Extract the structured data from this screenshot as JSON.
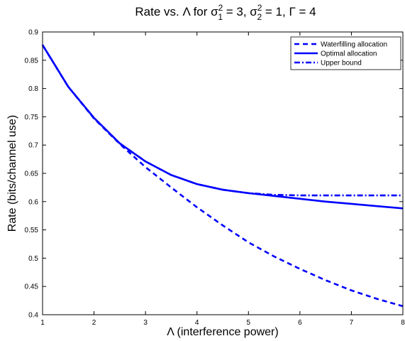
{
  "chart_data": {
    "type": "line",
    "title_parts": {
      "prefix": "Rate vs. Λ for σ",
      "s1_sup": "2",
      "s1_sub": "1",
      "eq1": " = 3, σ",
      "s2_sup": "2",
      "s2_sub": "2",
      "eq2": " = 1, Γ = 4"
    },
    "xlabel": "Λ (interference power)",
    "ylabel": "Rate (bits/channel use)",
    "xlim": [
      1,
      8
    ],
    "ylim": [
      0.4,
      0.9
    ],
    "xticks": [
      "1",
      "2",
      "3",
      "4",
      "5",
      "6",
      "7",
      "8"
    ],
    "yticks": [
      "0.4",
      "0.45",
      "0.5",
      "0.55",
      "0.6",
      "0.65",
      "0.7",
      "0.75",
      "0.8",
      "0.85",
      "0.9"
    ],
    "grid": false,
    "legend_position": "top-right",
    "x": [
      1.0,
      1.5,
      2.0,
      2.5,
      3.0,
      3.5,
      4.0,
      4.5,
      5.0,
      5.5,
      6.0,
      6.5,
      7.0,
      7.5,
      8.0
    ],
    "series": [
      {
        "name": "Waterfilling allocation",
        "style": "dashed",
        "color": "#0000ff",
        "values": [
          0.877,
          0.803,
          0.747,
          0.702,
          0.661,
          0.625,
          0.59,
          0.558,
          0.528,
          0.503,
          0.481,
          0.461,
          0.443,
          0.428,
          0.415
        ]
      },
      {
        "name": "Optimal allocation",
        "style": "solid",
        "color": "#0000ff",
        "values": [
          0.877,
          0.803,
          0.748,
          0.703,
          0.671,
          0.647,
          0.631,
          0.621,
          0.615,
          0.61,
          0.605,
          0.6,
          0.596,
          0.592,
          0.588
        ]
      },
      {
        "name": "Upper bound",
        "style": "dashdot",
        "color": "#0000ff",
        "values": [
          0.877,
          0.803,
          0.748,
          0.703,
          0.671,
          0.647,
          0.631,
          0.621,
          0.615,
          0.612,
          0.611,
          0.611,
          0.611,
          0.611,
          0.611
        ]
      }
    ]
  }
}
